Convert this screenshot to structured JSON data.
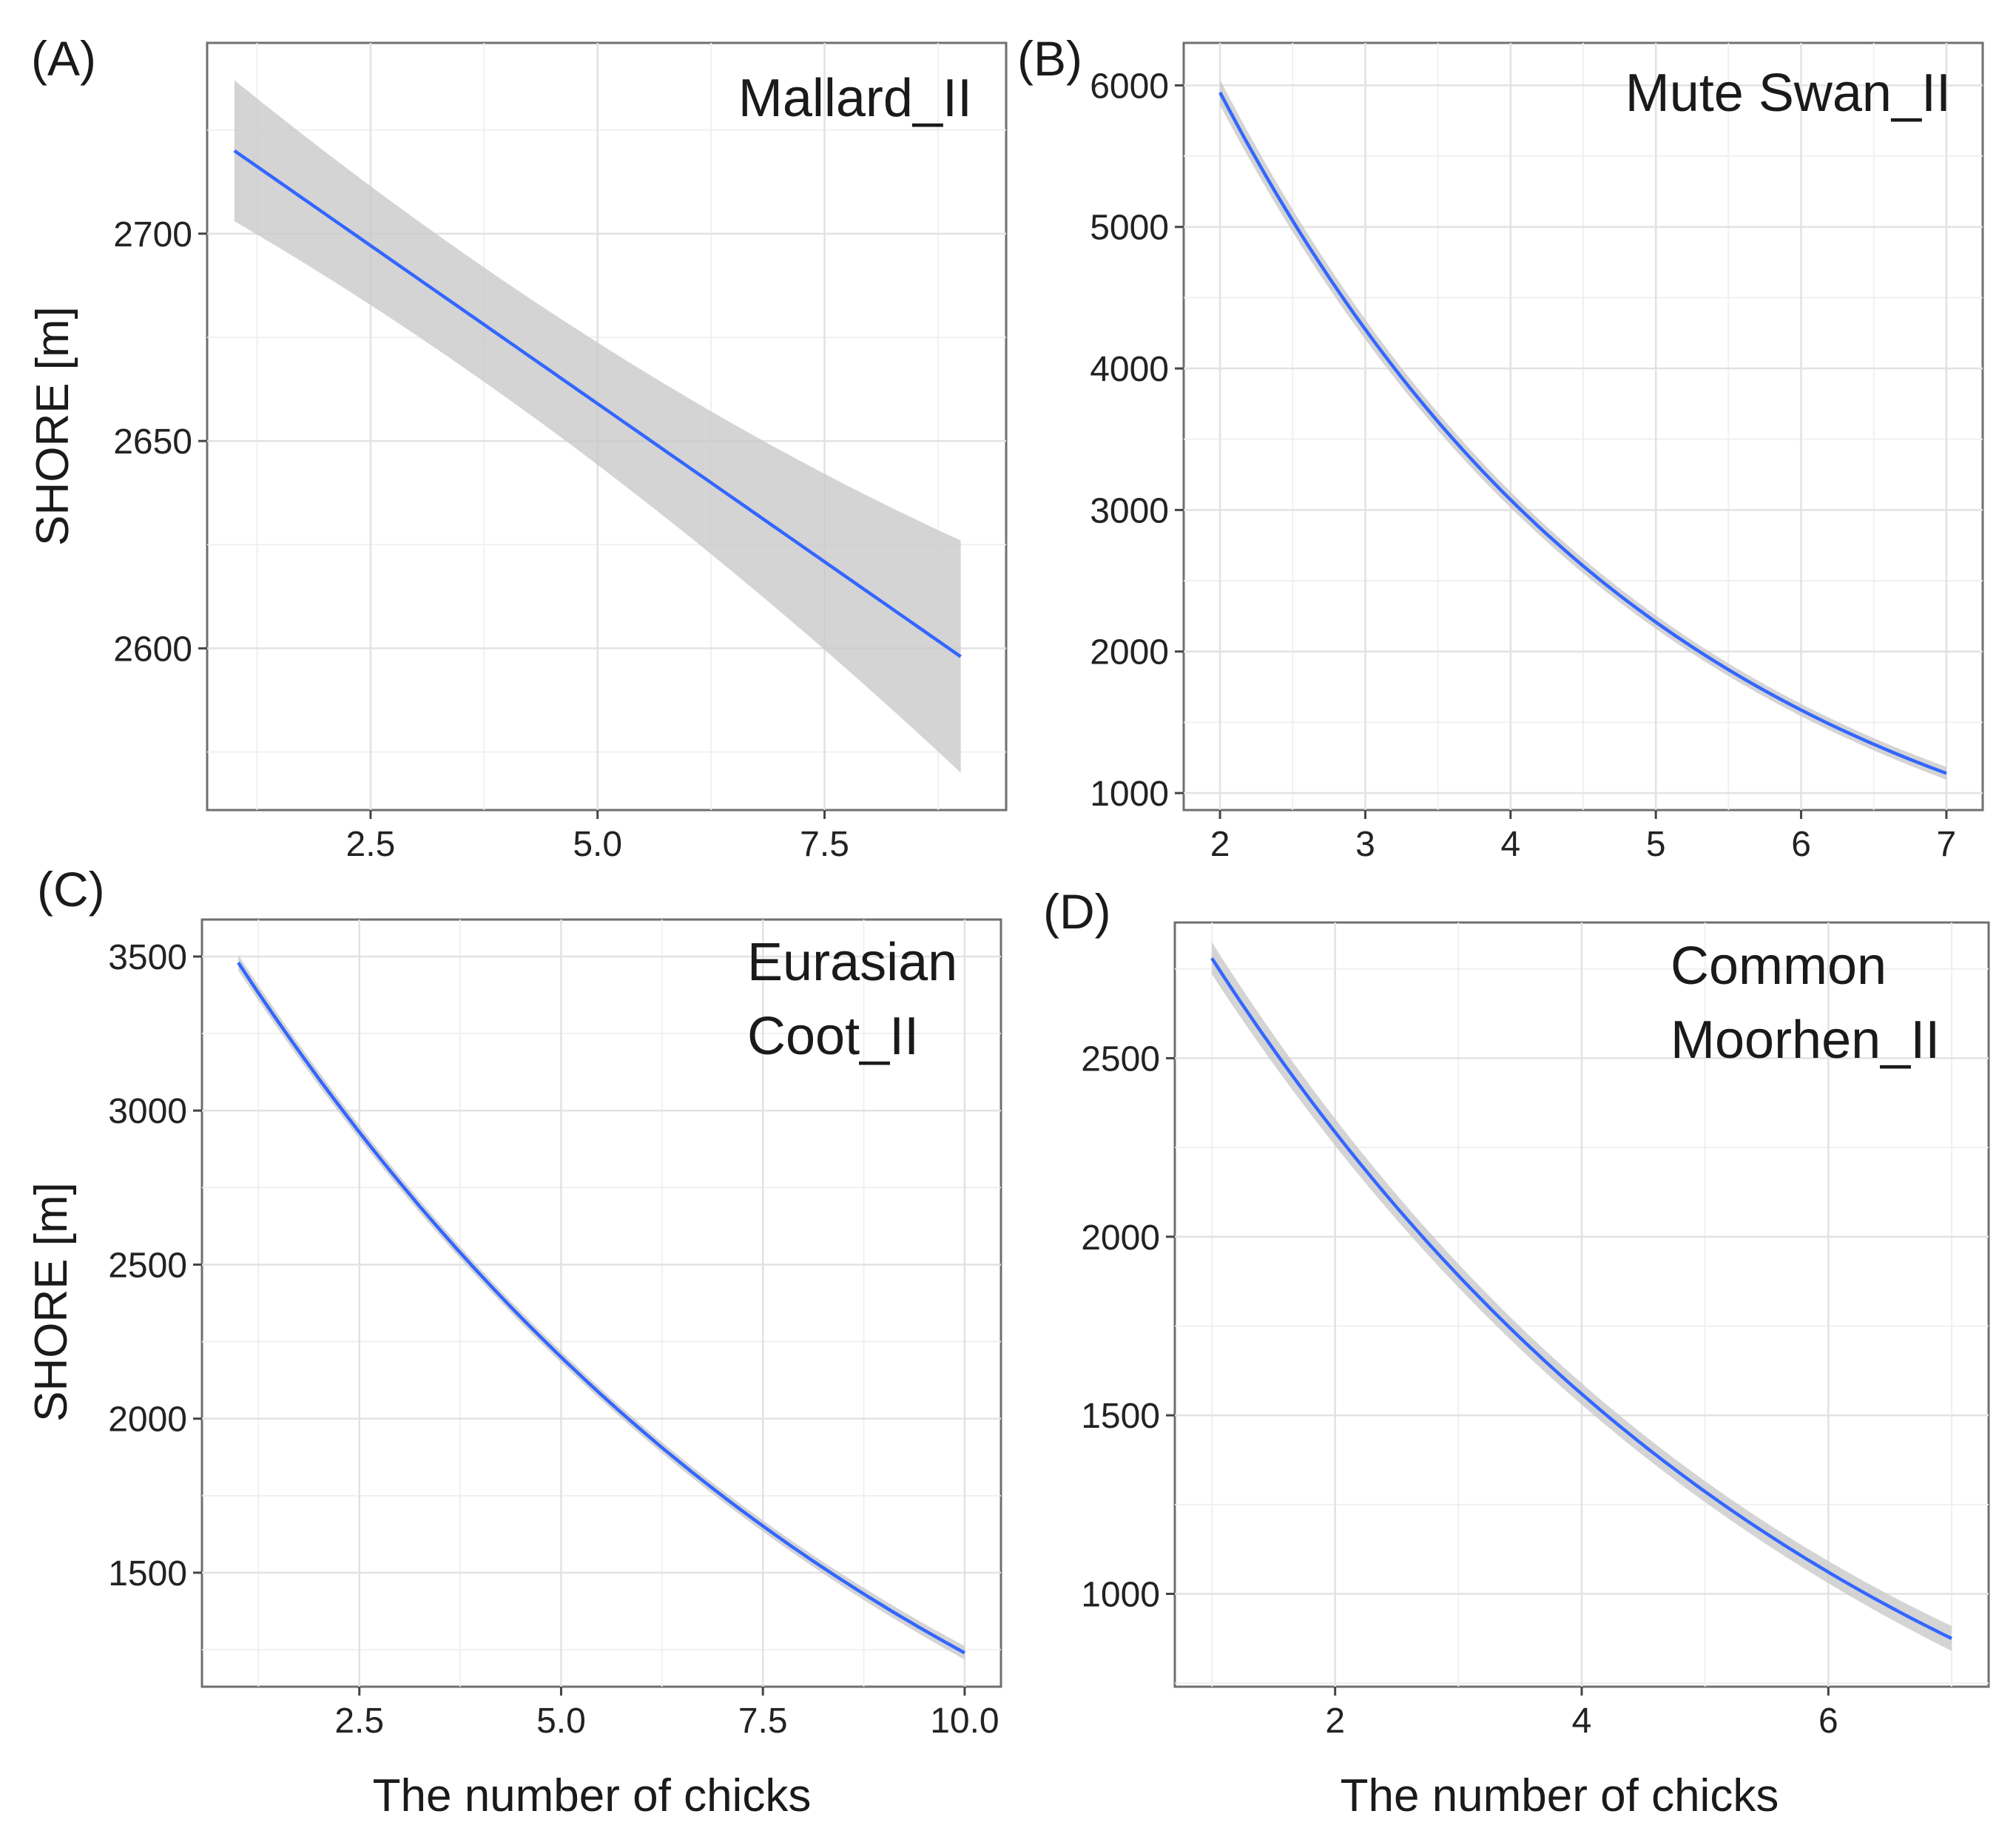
{
  "colors": {
    "fit_line": "#3366ff",
    "ci_band": "#c9c9c9",
    "grid": "#e2e2e2",
    "frame": "#6f6f6f"
  },
  "chart_data": [
    {
      "id": "A",
      "type": "line",
      "panel_tag": "(A)",
      "title_lines": [
        "Mallard_II"
      ],
      "xlabel": "",
      "ylabel": "SHORE [m]",
      "xlim": [
        0.7,
        9.5
      ],
      "ylim": [
        2561,
        2746
      ],
      "xticks": [
        2.5,
        5.0,
        7.5
      ],
      "xtick_labels": [
        "2.5",
        "5.0",
        "7.5"
      ],
      "yticks": [
        2600,
        2650,
        2700
      ],
      "ytick_labels": [
        "2600",
        "2650",
        "2700"
      ],
      "series": [
        {
          "name": "fit",
          "model": "linear",
          "x_start": 1,
          "x_end": 9,
          "y_start": 2720,
          "y_end": 2598,
          "ci_start": 17,
          "ci_mid": 7,
          "ci_end": 28
        }
      ]
    },
    {
      "id": "B",
      "type": "line",
      "panel_tag": "(B)",
      "title_lines": [
        "Mute Swan_II"
      ],
      "xlabel": "",
      "ylabel": "",
      "xlim": [
        1.75,
        7.25
      ],
      "ylim": [
        880,
        6300
      ],
      "xticks": [
        2,
        3,
        4,
        5,
        6,
        7
      ],
      "xtick_labels": [
        "2",
        "3",
        "4",
        "5",
        "6",
        "7"
      ],
      "yticks": [
        1000,
        2000,
        3000,
        4000,
        5000,
        6000
      ],
      "ytick_labels": [
        "1000",
        "2000",
        "3000",
        "4000",
        "5000",
        "6000"
      ],
      "series": [
        {
          "name": "fit",
          "model": "exponential",
          "x_start": 2,
          "x_end": 7,
          "y_start": 5950,
          "y_end": 1140,
          "ci_start": 90,
          "ci_mid": 35,
          "ci_end": 45
        }
      ]
    },
    {
      "id": "C",
      "type": "line",
      "panel_tag": "(C)",
      "title_lines": [
        "Eurasian",
        "Coot_II"
      ],
      "xlabel": "The number of chicks",
      "ylabel": "SHORE [m]",
      "xlim": [
        0.55,
        10.45
      ],
      "ylim": [
        1130,
        3620
      ],
      "xticks": [
        2.5,
        5.0,
        7.5,
        10.0
      ],
      "xtick_labels": [
        "2.5",
        "5.0",
        "7.5",
        "10.0"
      ],
      "yticks": [
        1500,
        2000,
        2500,
        3000,
        3500
      ],
      "ytick_labels": [
        "1500",
        "2000",
        "2500",
        "3000",
        "3500"
      ],
      "series": [
        {
          "name": "fit",
          "model": "exponential",
          "x_start": 1,
          "x_end": 10,
          "y_start": 3480,
          "y_end": 1240,
          "ci_start": 25,
          "ci_mid": 12,
          "ci_end": 22
        }
      ]
    },
    {
      "id": "D",
      "type": "line",
      "panel_tag": "(D)",
      "title_lines": [
        "Common",
        "Moorhen_II"
      ],
      "xlabel": "The number of chicks",
      "ylabel": "",
      "xlim": [
        0.7,
        7.3
      ],
      "ylim": [
        740,
        2880
      ],
      "xticks": [
        2,
        4,
        6
      ],
      "xtick_labels": [
        "2",
        "4",
        "6"
      ],
      "yticks": [
        1000,
        1500,
        2000,
        2500
      ],
      "ytick_labels": [
        "1000",
        "1500",
        "2000",
        "2500"
      ],
      "series": [
        {
          "name": "fit",
          "model": "exponential",
          "x_start": 1,
          "x_end": 7,
          "y_start": 2780,
          "y_end": 875,
          "ci_start": 45,
          "ci_mid": 20,
          "ci_end": 35
        }
      ]
    }
  ]
}
